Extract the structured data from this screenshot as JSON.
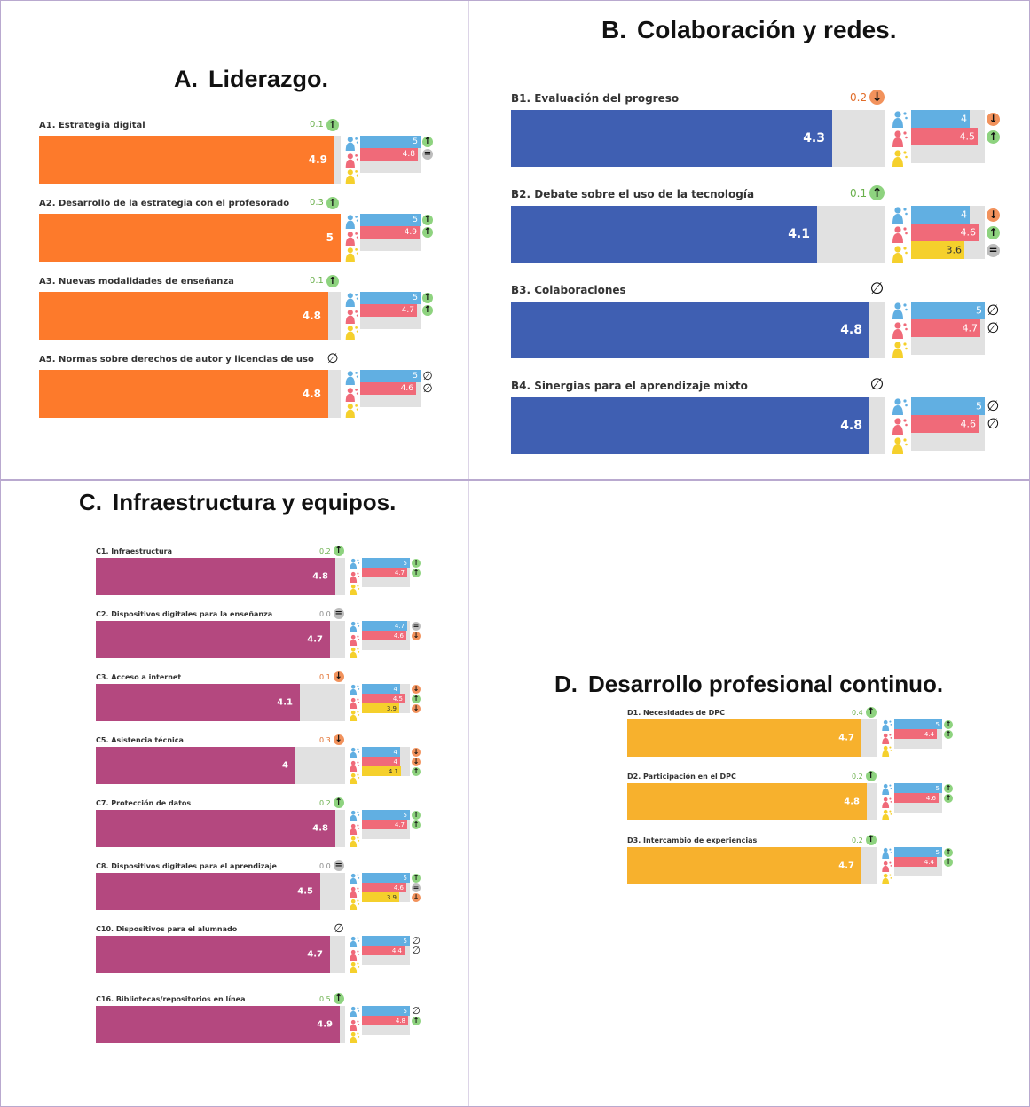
{
  "colors": {
    "orange": "#fd7a2b",
    "blue": "#3f5fb2",
    "magenta": "#b4487f",
    "gold": "#f7b12d",
    "teacher": "#61afe2",
    "student": "#f06a79",
    "leader": "#f5d02c",
    "track": "#e1e1e1",
    "up": "#8ed37f",
    "down": "#f2925c",
    "equal": "#bdbdbd",
    "delta_up_text": "#6ab04c",
    "delta_down_text": "#e16d2a",
    "delta_neutral_text": "#888888"
  },
  "chart_data": [
    {
      "type": "bar",
      "letter": "A.",
      "title": "Liderazgo.",
      "scale": [
        0,
        5
      ],
      "items": [
        {
          "label": "A1. Estrategia digital",
          "value": 4.9,
          "delta": "0.1",
          "delta_icon": "up",
          "sub": [
            {
              "role": "teacher",
              "value": 5,
              "label": "5",
              "icon": "up"
            },
            {
              "role": "student",
              "value": 4.8,
              "label": "4.8",
              "icon": "equal"
            }
          ]
        },
        {
          "label": "A2. Desarrollo de la estrategia con el profesorado",
          "value": 5,
          "delta": "0.3",
          "delta_icon": "up",
          "sub": [
            {
              "role": "teacher",
              "value": 5,
              "label": "5",
              "icon": "up"
            },
            {
              "role": "student",
              "value": 4.9,
              "label": "4.9",
              "icon": "up"
            }
          ]
        },
        {
          "label": "A3. Nuevas modalidades de enseñanza",
          "value": 4.8,
          "delta": "0.1",
          "delta_icon": "up",
          "sub": [
            {
              "role": "teacher",
              "value": 5,
              "label": "5",
              "icon": "up"
            },
            {
              "role": "student",
              "value": 4.7,
              "label": "4.7",
              "icon": "up"
            }
          ]
        },
        {
          "label": "A5. Normas sobre derechos de autor y licencias de uso",
          "value": 4.8,
          "delta": "",
          "delta_icon": "none",
          "sub": [
            {
              "role": "teacher",
              "value": 5,
              "label": "5",
              "icon": "none"
            },
            {
              "role": "student",
              "value": 4.6,
              "label": "4.6",
              "icon": "none"
            }
          ]
        }
      ]
    },
    {
      "type": "bar",
      "letter": "B.",
      "title": "Colaboración y redes.",
      "scale": [
        0,
        5
      ],
      "items": [
        {
          "label": "B1. Evaluación del progreso",
          "value": 4.3,
          "delta": "0.2",
          "delta_icon": "down",
          "sub": [
            {
              "role": "teacher",
              "value": 4,
              "label": "4",
              "icon": "down"
            },
            {
              "role": "student",
              "value": 4.5,
              "label": "4.5",
              "icon": "up"
            }
          ]
        },
        {
          "label": "B2. Debate sobre el uso de la tecnología",
          "value": 4.1,
          "delta": "0.1",
          "delta_icon": "up",
          "sub": [
            {
              "role": "teacher",
              "value": 4,
              "label": "4",
              "icon": "down"
            },
            {
              "role": "student",
              "value": 4.6,
              "label": "4.6",
              "icon": "up"
            },
            {
              "role": "leader",
              "value": 3.6,
              "label": "3.6",
              "icon": "equal"
            }
          ]
        },
        {
          "label": "B3. Colaboraciones",
          "value": 4.8,
          "delta": "",
          "delta_icon": "none",
          "sub": [
            {
              "role": "teacher",
              "value": 5,
              "label": "5",
              "icon": "none"
            },
            {
              "role": "student",
              "value": 4.7,
              "label": "4.7",
              "icon": "none"
            }
          ]
        },
        {
          "label": "B4. Sinergias para el aprendizaje mixto",
          "value": 4.8,
          "delta": "",
          "delta_icon": "none",
          "sub": [
            {
              "role": "teacher",
              "value": 5,
              "label": "5",
              "icon": "none"
            },
            {
              "role": "student",
              "value": 4.6,
              "label": "4.6",
              "icon": "none"
            }
          ]
        }
      ]
    },
    {
      "type": "bar",
      "letter": "C.",
      "title": "Infraestructura y equipos.",
      "scale": [
        0,
        5
      ],
      "items": [
        {
          "label": "C1. Infraestructura",
          "value": 4.8,
          "delta": "0.2",
          "delta_icon": "up",
          "sub": [
            {
              "role": "teacher",
              "value": 5,
              "label": "5",
              "icon": "up"
            },
            {
              "role": "student",
              "value": 4.7,
              "label": "4.7",
              "icon": "up"
            }
          ]
        },
        {
          "label": "C2. Dispositivos digitales para la enseñanza",
          "value": 4.7,
          "delta": "0.0",
          "delta_icon": "equal",
          "sub": [
            {
              "role": "teacher",
              "value": 4.7,
              "label": "4.7",
              "icon": "equal"
            },
            {
              "role": "student",
              "value": 4.6,
              "label": "4.6",
              "icon": "down"
            }
          ]
        },
        {
          "label": "C3. Acceso a internet",
          "value": 4.1,
          "delta": "0.1",
          "delta_icon": "down",
          "sub": [
            {
              "role": "teacher",
              "value": 4,
              "label": "4",
              "icon": "down"
            },
            {
              "role": "student",
              "value": 4.5,
              "label": "4.5",
              "icon": "up"
            },
            {
              "role": "leader",
              "value": 3.9,
              "label": "3.9",
              "icon": "down"
            }
          ]
        },
        {
          "label": "C5. Asistencia técnica",
          "value": 4,
          "delta": "0.3",
          "delta_icon": "down",
          "sub": [
            {
              "role": "teacher",
              "value": 4,
              "label": "4",
              "icon": "down"
            },
            {
              "role": "student",
              "value": 4,
              "label": "4",
              "icon": "down"
            },
            {
              "role": "leader",
              "value": 4.1,
              "label": "4.1",
              "icon": "up"
            }
          ]
        },
        {
          "label": "C7. Protección de datos",
          "value": 4.8,
          "delta": "0.2",
          "delta_icon": "up",
          "sub": [
            {
              "role": "teacher",
              "value": 5,
              "label": "5",
              "icon": "up"
            },
            {
              "role": "student",
              "value": 4.7,
              "label": "4.7",
              "icon": "up"
            }
          ]
        },
        {
          "label": "C8. Dispositivos digitales para el aprendizaje",
          "value": 4.5,
          "delta": "0.0",
          "delta_icon": "equal",
          "sub": [
            {
              "role": "teacher",
              "value": 5,
              "label": "5",
              "icon": "up"
            },
            {
              "role": "student",
              "value": 4.6,
              "label": "4.6",
              "icon": "equal"
            },
            {
              "role": "leader",
              "value": 3.9,
              "label": "3.9",
              "icon": "down"
            }
          ]
        },
        {
          "label": "C10. Dispositivos para el alumnado",
          "value": 4.7,
          "delta": "",
          "delta_icon": "none",
          "sub": [
            {
              "role": "teacher",
              "value": 5,
              "label": "5",
              "icon": "none"
            },
            {
              "role": "student",
              "value": 4.4,
              "label": "4.4",
              "icon": "none"
            }
          ]
        },
        {
          "label": "C16. Bibliotecas/repositorios en línea",
          "value": 4.9,
          "delta": "0.5",
          "delta_icon": "up",
          "sub": [
            {
              "role": "teacher",
              "value": 5,
              "label": "5",
              "icon": "none"
            },
            {
              "role": "student",
              "value": 4.8,
              "label": "4.8",
              "icon": "up"
            }
          ]
        }
      ]
    },
    {
      "type": "bar",
      "letter": "D.",
      "title": "Desarrollo profesional continuo.",
      "scale": [
        0,
        5
      ],
      "items": [
        {
          "label": "D1. Necesidades de DPC",
          "value": 4.7,
          "delta": "0.4",
          "delta_icon": "up",
          "sub": [
            {
              "role": "teacher",
              "value": 5,
              "label": "5",
              "icon": "up"
            },
            {
              "role": "student",
              "value": 4.4,
              "label": "4.4",
              "icon": "up"
            }
          ]
        },
        {
          "label": "D2. Participación en el DPC",
          "value": 4.8,
          "delta": "0.2",
          "delta_icon": "up",
          "sub": [
            {
              "role": "teacher",
              "value": 5,
              "label": "5",
              "icon": "up"
            },
            {
              "role": "student",
              "value": 4.6,
              "label": "4.6",
              "icon": "up"
            }
          ]
        },
        {
          "label": "D3. Intercambio de experiencias",
          "value": 4.7,
          "delta": "0.2",
          "delta_icon": "up",
          "sub": [
            {
              "role": "teacher",
              "value": 5,
              "label": "5",
              "icon": "up"
            },
            {
              "role": "student",
              "value": 4.4,
              "label": "4.4",
              "icon": "up"
            }
          ]
        }
      ]
    }
  ]
}
